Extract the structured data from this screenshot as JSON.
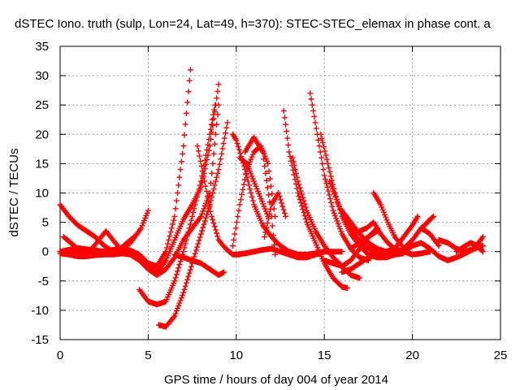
{
  "chart_data": {
    "type": "scatter",
    "title": "dSTEC Iono. truth (sulp, Lon=24, Lat=49, h=370): STEC-STEC_elemax in phase cont. a",
    "xlabel": "GPS time / hours of day 004 of year 2014",
    "ylabel": "dSTEC  / TECUs",
    "xlim": [
      0,
      25
    ],
    "ylim": [
      -15,
      35
    ],
    "xticks": [
      0,
      5,
      10,
      15,
      20,
      25
    ],
    "yticks": [
      -15,
      -10,
      -5,
      0,
      5,
      10,
      15,
      20,
      25,
      30,
      35
    ],
    "grid": true,
    "marker": "+",
    "color": "#ff0000",
    "series": [
      {
        "x": [
          0.0,
          0.5,
          1.0,
          1.5,
          2.0,
          2.5,
          3.0,
          3.5,
          4.0,
          4.5,
          5.0,
          5.5,
          6.0,
          6.5,
          7.0,
          7.4
        ],
        "y": [
          0.0,
          0.3,
          0.6,
          0.4,
          0.2,
          0.0,
          0.3,
          0.5,
          0.2,
          -0.5,
          -2.0,
          -2.5,
          0.0,
          6.0,
          18.0,
          31.0
        ]
      },
      {
        "x": [
          0.0,
          0.5,
          1.0,
          1.5,
          2.0,
          2.5,
          3.0,
          3.5,
          4.0,
          4.5,
          5.0,
          5.5,
          6.0,
          6.5,
          7.0,
          7.5,
          8.0,
          8.5,
          9.0
        ],
        "y": [
          0.0,
          0.2,
          0.0,
          -0.3,
          -0.5,
          -0.4,
          -0.3,
          -0.2,
          -0.5,
          -1.5,
          -2.8,
          -3.5,
          -1.5,
          2.0,
          5.5,
          8.0,
          11.0,
          18.0,
          28.5
        ]
      },
      {
        "x": [
          0.0,
          0.5,
          1.0,
          1.5,
          2.0,
          2.5,
          3.0,
          3.5,
          4.0,
          4.5,
          5.0,
          5.5,
          6.0,
          6.5,
          7.0,
          7.5,
          8.0,
          8.5,
          9.0
        ],
        "y": [
          -0.3,
          -0.5,
          -0.8,
          -0.8,
          -0.6,
          -0.5,
          -0.5,
          -0.3,
          -0.5,
          -1.5,
          -3.0,
          -4.0,
          -3.0,
          -1.0,
          2.0,
          4.0,
          6.0,
          10.0,
          25.0
        ]
      },
      {
        "x": [
          0.0,
          0.5,
          1.0,
          1.5,
          2.0,
          2.5,
          3.0
        ],
        "y": [
          8.0,
          6.0,
          4.5,
          3.5,
          2.5,
          1.0,
          0.0
        ]
      },
      {
        "x": [
          0.2,
          0.6,
          1.0,
          1.4,
          1.8,
          2.2,
          2.6,
          3.0,
          3.4,
          3.8,
          4.2
        ],
        "y": [
          2.5,
          1.5,
          0.5,
          -0.2,
          0.5,
          2.0,
          3.5,
          2.0,
          0.5,
          1.5,
          2.5
        ]
      },
      {
        "x": [
          1.0,
          1.6,
          2.2,
          2.8,
          3.4,
          4.0,
          4.6,
          5.0
        ],
        "y": [
          0.5,
          0.0,
          -0.3,
          0.0,
          0.5,
          1.5,
          4.0,
          7.0
        ]
      },
      {
        "x": [
          4.5,
          5.0,
          5.5,
          6.0,
          6.5,
          7.0,
          7.5,
          8.0,
          8.5,
          8.8
        ],
        "y": [
          -6.5,
          -8.5,
          -9.0,
          -8.5,
          -5.0,
          0.0,
          6.0,
          12.0,
          20.0,
          25.0
        ]
      },
      {
        "x": [
          5.6,
          6.0,
          6.5,
          7.0,
          7.5,
          8.0,
          8.5,
          9.0,
          9.5
        ],
        "y": [
          -12.5,
          -12.8,
          -11.0,
          -7.0,
          -2.0,
          3.0,
          8.0,
          14.0,
          22.0
        ]
      },
      {
        "x": [
          6.5,
          7.0,
          7.5,
          8.0,
          8.5,
          9.0,
          9.3
        ],
        "y": [
          -0.5,
          -1.0,
          -1.5,
          -2.0,
          -3.0,
          -4.0,
          -3.5
        ]
      },
      {
        "x": [
          7.8,
          8.2,
          8.6,
          9.0,
          9.4,
          9.8,
          10.2
        ],
        "y": [
          18.0,
          12.0,
          6.0,
          2.0,
          0.5,
          -0.5,
          -0.5
        ]
      },
      {
        "x": [
          9.8,
          10.0,
          10.5,
          11.0,
          11.5,
          12.0,
          12.5,
          13.0,
          13.5,
          14.0,
          14.5,
          15.0
        ],
        "y": [
          20.0,
          19.0,
          14.0,
          8.0,
          4.5,
          2.5,
          1.0,
          0.0,
          -0.5,
          -0.5,
          -0.3,
          0.0
        ]
      },
      {
        "x": [
          10.2,
          10.6,
          11.0,
          11.4,
          11.8
        ],
        "y": [
          16.0,
          15.0,
          12.0,
          9.0,
          6.0
        ]
      },
      {
        "x": [
          9.8,
          10.2,
          10.6,
          11.0,
          11.4,
          11.8,
          12.2
        ],
        "y": [
          1.0,
          8.0,
          14.0,
          17.0,
          18.0,
          15.0,
          6.0
        ]
      },
      {
        "x": [
          10.5,
          11.0,
          11.5,
          12.0,
          12.2
        ],
        "y": [
          17.0,
          19.5,
          17.0,
          6.0,
          -0.5
        ]
      },
      {
        "x": [
          11.6,
          12.0,
          12.4,
          12.8
        ],
        "y": [
          2.5,
          8.0,
          10.0,
          6.0
        ]
      },
      {
        "x": [
          12.7,
          13.0,
          13.5,
          14.0,
          14.5,
          15.0,
          15.5,
          16.0,
          16.3
        ],
        "y": [
          24.0,
          17.0,
          10.0,
          5.0,
          1.5,
          -2.0,
          -4.5,
          -6.0,
          -6.2
        ]
      },
      {
        "x": [
          13.2,
          13.5,
          14.0,
          14.5,
          15.0,
          15.5,
          16.0,
          16.5,
          17.0
        ],
        "y": [
          16.0,
          12.0,
          7.0,
          3.5,
          1.0,
          -1.0,
          -2.5,
          -4.0,
          -4.5
        ]
      },
      {
        "x": [
          14.2,
          14.6,
          15.0,
          15.5,
          16.0,
          16.5,
          17.0,
          17.5
        ],
        "y": [
          27.0,
          20.0,
          13.0,
          7.0,
          3.0,
          0.5,
          -1.0,
          -1.5
        ]
      },
      {
        "x": [
          14.8,
          15.2,
          15.6,
          16.0,
          16.5,
          17.0,
          17.5,
          18.0,
          18.5
        ],
        "y": [
          20.0,
          15.0,
          10.0,
          6.0,
          3.0,
          1.0,
          -0.5,
          -1.0,
          -0.5
        ]
      },
      {
        "x": [
          15.3,
          15.8,
          16.3,
          16.8,
          17.3,
          17.8,
          18.3
        ],
        "y": [
          12.0,
          8.0,
          5.0,
          2.5,
          1.0,
          0.0,
          -0.5
        ]
      },
      {
        "x": [
          16.0,
          16.5,
          17.0,
          17.5,
          18.0,
          18.5,
          19.0,
          19.5
        ],
        "y": [
          7.0,
          5.0,
          3.0,
          1.5,
          0.5,
          0.0,
          -0.5,
          -0.3
        ]
      },
      {
        "x": [
          15.0,
          15.5,
          16.0,
          16.5,
          17.0,
          17.5,
          18.0
        ],
        "y": [
          -1.5,
          -2.0,
          -2.5,
          -1.5,
          0.5,
          2.5,
          4.0
        ]
      },
      {
        "x": [
          16.5,
          17.0,
          17.5,
          18.0
        ],
        "y": [
          0.5,
          1.5,
          2.5,
          3.5
        ]
      },
      {
        "x": [
          17.0,
          17.4,
          17.8,
          18.2,
          18.6,
          19.0,
          19.5,
          20.0,
          20.5,
          21.0
        ],
        "y": [
          3.5,
          4.0,
          5.0,
          3.0,
          1.5,
          0.5,
          0.0,
          -0.5,
          -0.3,
          0.0
        ]
      },
      {
        "x": [
          17.8,
          18.2,
          18.6,
          19.0,
          19.4
        ],
        "y": [
          10.0,
          8.0,
          5.0,
          2.5,
          1.0
        ]
      },
      {
        "x": [
          18.0,
          18.5,
          19.0,
          19.5,
          20.0,
          20.5,
          21.0,
          21.5
        ],
        "y": [
          -1.0,
          -1.0,
          -0.5,
          0.5,
          2.0,
          4.0,
          3.0,
          1.0
        ]
      },
      {
        "x": [
          19.0,
          19.5,
          20.0,
          20.3
        ],
        "y": [
          0.5,
          2.5,
          4.5,
          6.0
        ]
      },
      {
        "x": [
          20.5,
          20.8,
          21.0,
          21.2
        ],
        "y": [
          4.0,
          4.8,
          5.5,
          6.0
        ]
      },
      {
        "x": [
          19.5,
          20.0,
          20.5,
          21.0,
          21.5,
          22.0,
          22.5,
          23.0,
          23.5,
          24.0
        ],
        "y": [
          0.0,
          1.0,
          1.5,
          0.5,
          -0.8,
          -1.5,
          -1.0,
          -0.3,
          0.5,
          1.0
        ]
      },
      {
        "x": [
          21.5,
          22.0,
          22.5,
          23.0,
          23.5,
          24.0
        ],
        "y": [
          2.0,
          1.5,
          0.5,
          0.0,
          0.5,
          2.5
        ]
      },
      {
        "x": [
          22.5,
          22.9,
          23.3,
          23.7,
          24.0
        ],
        "y": [
          0.0,
          0.8,
          1.5,
          1.0,
          0.0
        ]
      },
      {
        "x": [
          10.0,
          10.5,
          11.0,
          11.5,
          12.0,
          12.5,
          13.0,
          13.5,
          14.0,
          14.5,
          15.0,
          15.5,
          16.0
        ],
        "y": [
          -0.5,
          -0.3,
          0.0,
          0.3,
          0.5,
          0.0,
          -0.5,
          -1.0,
          -1.0,
          -0.5,
          0.0,
          0.0,
          0.0
        ]
      },
      {
        "x": [
          16.0,
          16.5,
          17.0,
          17.5,
          18.0,
          18.5,
          19.0
        ],
        "y": [
          -3.5,
          -3.0,
          -2.0,
          -1.0,
          -0.5,
          0.0,
          0.5
        ]
      }
    ]
  }
}
